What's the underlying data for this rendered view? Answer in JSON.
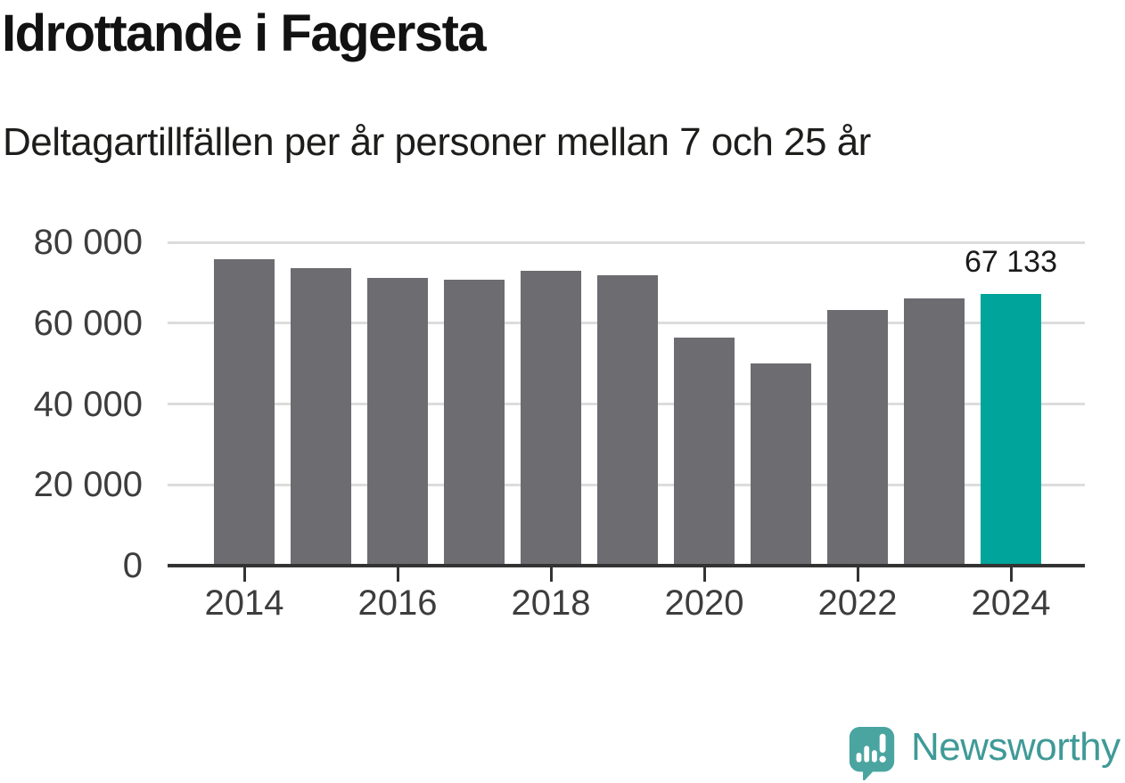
{
  "header": {
    "title": "Idrottande i Fagersta",
    "subtitle": "Deltagartillfällen per år personer mellan 7 och 25 år"
  },
  "chart_data": {
    "type": "bar",
    "title": "Idrottande i Fagersta",
    "subtitle": "Deltagartillfällen per år personer mellan 7 och 25 år",
    "categories": [
      "2014",
      "2015",
      "2016",
      "2017",
      "2018",
      "2019",
      "2020",
      "2021",
      "2022",
      "2023",
      "2024"
    ],
    "values": [
      75800,
      73600,
      71100,
      70700,
      72900,
      71800,
      56400,
      50100,
      63200,
      66100,
      67133
    ],
    "highlight_index": 10,
    "annotation": {
      "bar_index": 10,
      "text": "67 133"
    },
    "ylim": [
      0,
      80000
    ],
    "y_tick_values": [
      80000,
      60000,
      40000,
      20000,
      0
    ],
    "y_tick_labels": [
      "80 000",
      "60 000",
      "40 000",
      "20 000",
      "0"
    ],
    "x_tick_indices": [
      0,
      2,
      4,
      6,
      8,
      10
    ],
    "x_tick_labels": [
      "2014",
      "2016",
      "2018",
      "2020",
      "2022",
      "2024"
    ],
    "grid": "horizontal-only",
    "legend": "none",
    "colors": {
      "bar": "#6d6c71",
      "highlight": "#00a49a",
      "gridline": "#dcdcdc",
      "axis": "#333333",
      "tick_label": "#3d3d3d",
      "annotation": "#1a1a1a"
    }
  },
  "footer": {
    "brand": "Newsworthy",
    "brand_color": "#3f9a97",
    "logo_icon": "bar-chart-speech-bubble-icon",
    "logo_fill": "#4aa5a1"
  }
}
